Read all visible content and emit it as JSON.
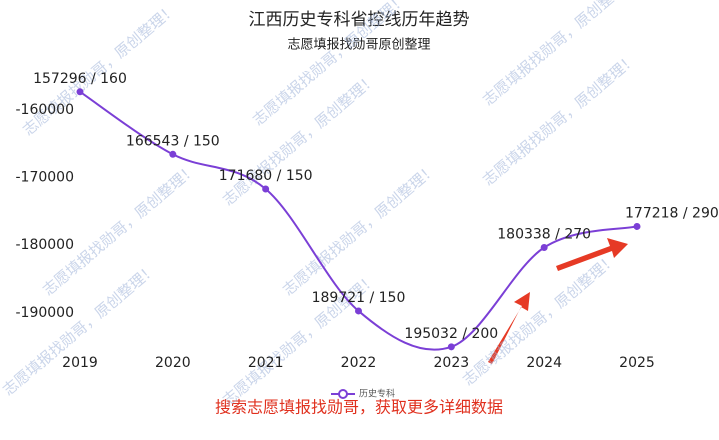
{
  "chart_data": {
    "type": "line",
    "title": "江西历史专科省控线历年趋势",
    "subtitle": "志愿填报找勋哥原创整理",
    "categories": [
      "2019",
      "2020",
      "2021",
      "2022",
      "2023",
      "2024",
      "2025"
    ],
    "series": [
      {
        "name": "历史专科",
        "color": "#7b3fd6",
        "values": [
          -157296,
          -166543,
          -171680,
          -189721,
          -195032,
          -180338,
          -177218
        ],
        "value_labels": [
          "157296 / 160",
          "166543 / 150",
          "171680 / 150",
          "189721 / 150",
          "195032 / 200",
          "180338 / 270",
          "177218 / 290"
        ]
      }
    ],
    "ylim": [
      -195500,
      -152000
    ],
    "yticks": [
      -160000,
      -170000,
      -180000,
      -190000
    ],
    "grid": false,
    "legend": "bottom",
    "footer": "搜索志愿填报找勋哥，获取更多详细数据",
    "watermark": "志愿填报找勋哥，原创整理！"
  }
}
